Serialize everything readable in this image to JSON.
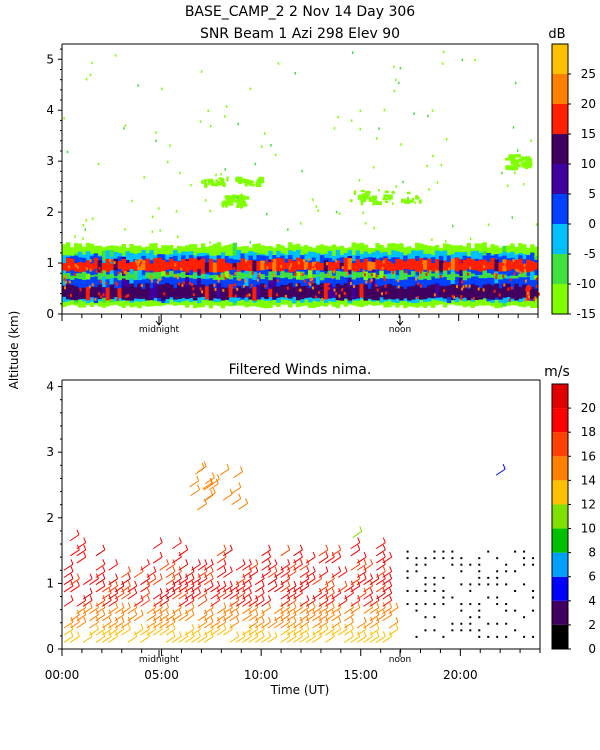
{
  "header": {
    "line1": "BASE_CAMP_2    2 Nov 14 Day 306",
    "line2": "SNR Beam 1 Azi 298 Elev 90"
  },
  "common": {
    "ylabel": "Altitude (km)",
    "xlabel": "Time (UT)",
    "midnight_label": "midnight",
    "noon_label": "noon"
  },
  "colors": {
    "snr_scale": [
      "#80ff00",
      "#40e040",
      "#00c0ff",
      "#0040ff",
      "#4000a0",
      "#400060",
      "#ff2000",
      "#ff8000",
      "#ffc000"
    ],
    "wind_scale": [
      "#000000",
      "#400060",
      "#0000ff",
      "#00a0ff",
      "#00c000",
      "#80e000",
      "#ffc000",
      "#ff8000",
      "#ff4000",
      "#ff0000",
      "#e00000"
    ]
  },
  "chart_data": [
    {
      "type": "heatmap",
      "title": "SNR Beam 1 Azi 298 Elev 90",
      "ylabel": "Altitude (km)",
      "ylim": [
        0,
        5.3
      ],
      "yticks": [
        "0",
        "1",
        "2",
        "3",
        "4",
        "5"
      ],
      "xlim": [
        0,
        24
      ],
      "colorbar_unit": "dB",
      "colorbar_ticks": [
        "-15",
        "-10",
        "-5",
        "0",
        "5",
        "10",
        "15",
        "20",
        "25"
      ],
      "colorbar_range": [
        -15,
        30
      ],
      "layers": [
        {
          "y0": 0.15,
          "y1": 1.35,
          "x0": 0,
          "x1": 24,
          "level": 0
        },
        {
          "y0": 0.25,
          "y1": 1.2,
          "x0": 0,
          "x1": 24,
          "level": 2
        },
        {
          "y0": 0.35,
          "y1": 1.1,
          "x0": 0,
          "x1": 24,
          "level": 3
        },
        {
          "y0": 0.85,
          "y1": 1.05,
          "x0": 0,
          "x1": 24,
          "level": 6
        },
        {
          "y0": 0.3,
          "y1": 0.55,
          "x0": 0,
          "x1": 24,
          "level": 5
        },
        {
          "y0": 0.7,
          "y1": 0.8,
          "x0": 0,
          "x1": 24,
          "level": 1
        }
      ],
      "patches": [
        {
          "x": 14.5,
          "y": 2.2,
          "w": 3.5,
          "h": 0.25,
          "level": 0
        },
        {
          "x": 22.3,
          "y": 2.9,
          "w": 1.2,
          "h": 0.25,
          "level": 0
        },
        {
          "x": 7.0,
          "y": 2.55,
          "w": 3.0,
          "h": 0.15,
          "level": 0
        },
        {
          "x": 8.0,
          "y": 2.15,
          "w": 1.2,
          "h": 0.2,
          "level": 0
        }
      ]
    },
    {
      "type": "scatter",
      "title": "Filtered Winds nima.",
      "xlabel": "Time (UT)",
      "ylabel": "Altitude (km)",
      "ylim": [
        0,
        4.1
      ],
      "yticks": [
        "0",
        "1",
        "2",
        "3",
        "4"
      ],
      "xlim": [
        0,
        24
      ],
      "xticks": [
        "00:00",
        "05:00",
        "10:00",
        "15:00",
        "20:00"
      ],
      "colorbar_unit": "m/s",
      "colorbar_ticks": [
        "0",
        "2",
        "4",
        "6",
        "8",
        "10",
        "12",
        "14",
        "16",
        "18",
        "20"
      ],
      "colorbar_range": [
        0,
        22
      ],
      "barb_region": {
        "x0": 0,
        "x1": 16.5,
        "y0": 0.05,
        "y1": 1.6
      },
      "dots_region": {
        "x0": 17.3,
        "x1": 24,
        "y0": 0.2,
        "y1": 1.55
      }
    }
  ]
}
